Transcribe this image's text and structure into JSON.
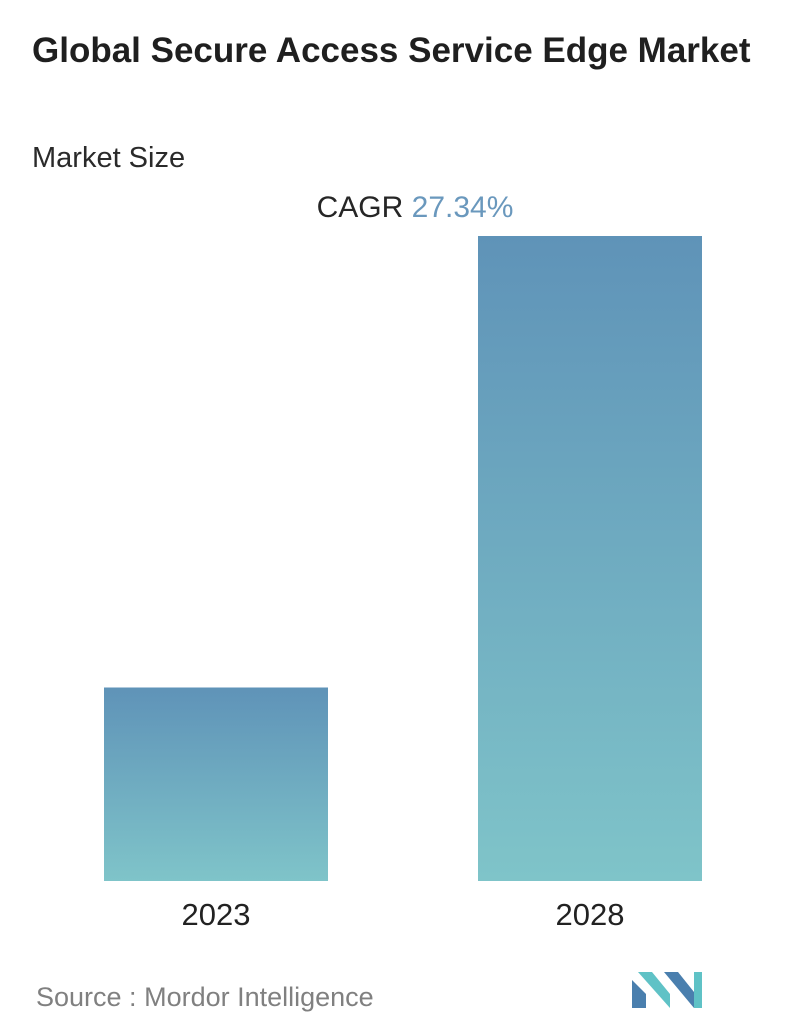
{
  "header": {
    "title": "Global Secure Access Service Edge Market",
    "subtitle": "Market Size"
  },
  "cagr": {
    "label": "CAGR",
    "value": "27.34%"
  },
  "footer": {
    "source_label": "Source :",
    "source_name": "Mordor Intelligence",
    "logo_icon": "mordor-intelligence-logo-icon"
  },
  "colors": {
    "bar_top": "#5f93b8",
    "bar_bottom": "#7fc4c9",
    "cagr_value": "#6a98bd",
    "logo_dark": "#4a7fae",
    "logo_light": "#5fc2c6"
  },
  "chart_data": {
    "type": "bar",
    "categories": [
      "2023",
      "2028"
    ],
    "values": [
      3.0,
      10.0
    ],
    "ylim": [
      0,
      10
    ],
    "grid": false,
    "legend": "none",
    "axis_values_shown": false
  }
}
